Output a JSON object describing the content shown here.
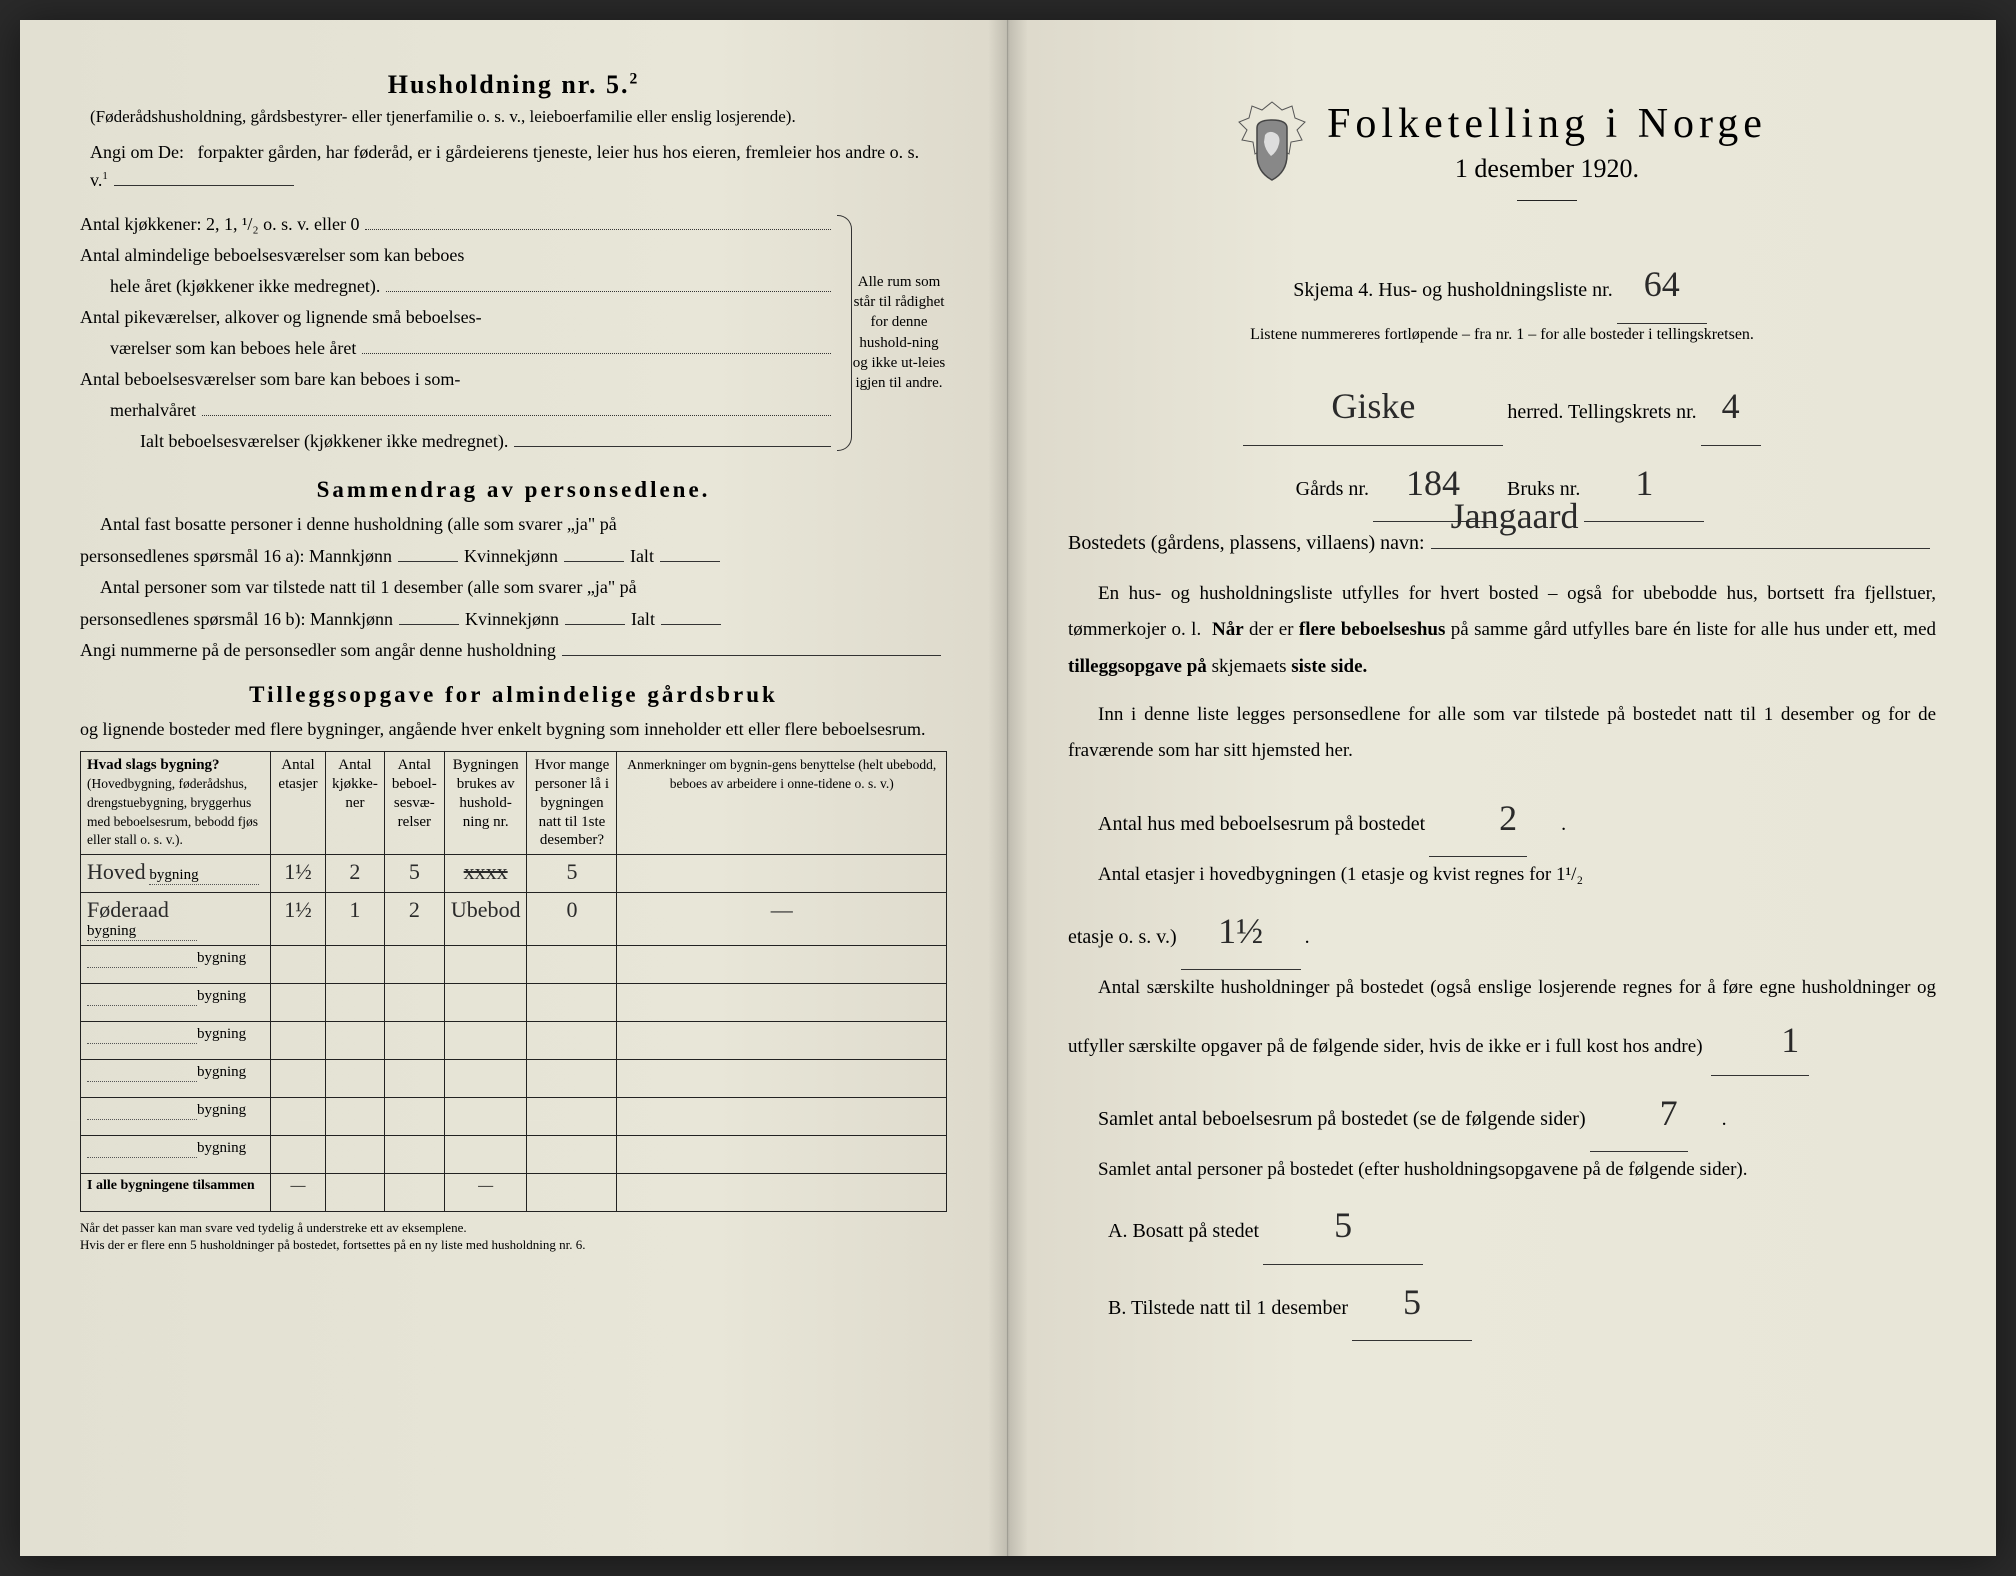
{
  "left": {
    "heading": "Husholdning nr. 5.",
    "heading_sup": "2",
    "sub1": "(Føderådshusholdning, gårdsbestyrer- eller tjenerfamilie o. s. v., leieboerfamilie eller enslig losjerende).",
    "sub2_a": "Angi om De:",
    "sub2_b": "forpakter gården, har føderåd, er i gårdeierens tjeneste, leier hus hos eieren, fremleier hos andre o. s. v.",
    "sub2_sup": "1",
    "k1": "Antal kjøkkener: 2, 1, ¹/₂ o. s. v. eller 0",
    "k2a": "Antal almindelige beboelsesværelser som kan beboes",
    "k2b": "hele året (kjøkkener ikke medregnet).",
    "k3a": "Antal pikeværelser, alkover og lignende små beboelses-",
    "k3b": "værelser som kan beboes hele året",
    "k4a": "Antal beboelsesværelser som bare kan beboes i som-",
    "k4b": "merhalvåret",
    "k5": "Ialt beboelsesværelser (kjøkkener ikke medregnet).",
    "bracket_text": "Alle rum som står til rådighet for denne hushold-ning og ikke ut-leies igjen til andre.",
    "sec2_title": "Sammendrag av personsedlene.",
    "sec2_l1": "Antal fast bosatte personer i denne husholdning (alle som svarer „ja\" på",
    "sec2_l2a": "personsedlenes spørsmål 16 a): Mannkjønn",
    "sec2_l2b": "Kvinnekjønn",
    "sec2_l2c": "Ialt",
    "sec2_l3": "Antal personer som var tilstede natt til 1 desember (alle som svarer „ja\" på",
    "sec2_l4a": "personsedlenes spørsmål 16 b): Mannkjønn",
    "sec2_l5": "Angi nummerne på de personsedler som angår denne husholdning",
    "sec3_title": "Tilleggsopgave for almindelige gårdsbruk",
    "sec3_sub": "og lignende bosteder med flere bygninger, angående hver enkelt bygning som inneholder ett eller flere beboelsesrum.",
    "th1a": "Hvad slags bygning?",
    "th1b": "(Hovedbygning, føderådshus, drengstuebygning, bryggerhus med beboelsesrum, bebodd fjøs eller stall o. s. v.).",
    "th2": "Antal etasjer",
    "th3": "Antal kjøkke-ner",
    "th4": "Antal beboel-sesvæ-relser",
    "th5": "Bygningen brukes av hushold-ning nr.",
    "th6": "Hvor mange personer lå i bygningen natt til 1ste desember?",
    "th7": "Anmerkninger om bygnin-gens benyttelse (helt ubebodd, beboes av arbeidere i onne-tidene o. s. v.)",
    "row_suffix": "bygning",
    "rows": [
      {
        "name": "Hoved",
        "etasjer": "1½",
        "kjokken": "2",
        "rum": "5",
        "brukes": "",
        "brukes_strike": true,
        "personer": "5",
        "anm": ""
      },
      {
        "name": "Føderaad",
        "etasjer": "1½",
        "kjokken": "1",
        "rum": "2",
        "brukes": "Ubebod",
        "personer": "0",
        "anm": "—"
      }
    ],
    "total_label": "I alle bygningene tilsammen",
    "total_dash": "—",
    "fn1": "Når det passer kan man svare ved tydelig å understreke ett av eksemplene.",
    "fn2": "Hvis der er flere enn 5 husholdninger på bostedet, fortsettes på en ny liste med husholdning nr. 6."
  },
  "right": {
    "title": "Folketelling i Norge",
    "date": "1 desember 1920.",
    "skjema": "Skjema 4.  Hus- og husholdningsliste nr.",
    "liste_nr": "64",
    "listene": "Listene nummereres fortløpende – fra nr. 1 – for alle bosteder i tellingskretsen.",
    "herred_val": "Giske",
    "herred_lbl": "herred.  Tellingskrets nr.",
    "krets_nr": "4",
    "gards_lbl": "Gårds nr.",
    "gards_nr": "184",
    "bruks_lbl": "Bruks nr.",
    "bruks_nr": "1",
    "bosted_lbl": "Bostedets (gårdens, plassens, villaens) navn:",
    "bosted_val": "Jangaard",
    "p1": "En hus- og husholdningsliste utfylles for hvert bosted – også for ubebodde hus, bortsett fra fjellstuer, tømmerkojer o. l.  Når der er flere beboelseshus på samme gård utfylles bare én liste for alle hus under ett, med tilleggsopgave på skjemaets siste side.",
    "p2": "Inn i denne liste legges personsedlene for alle som var tilstede på bostedet natt til 1 desember og for de fraværende som har sitt hjemsted her.",
    "q1_a": "Antal hus med beboelsesrum på bostedet",
    "q1_val": "2",
    "q2_a": "Antal etasjer i hovedbygningen (1 etasje og kvist regnes for 1¹/₂",
    "q2_b": "etasje o. s. v.)",
    "q2_val": "1½",
    "q3": "Antal særskilte husholdninger på bostedet (også enslige losjerende regnes for å føre egne husholdninger og utfyller særskilte opgaver på de følgende sider, hvis de ikke er i full kost hos andre)",
    "q3_val": "1",
    "q4": "Samlet antal beboelsesrum på bostedet (se de følgende sider)",
    "q4_val": "7",
    "q5": "Samlet antal personer på bostedet (efter husholdningsopgavene på de følgende sider).",
    "qA": "A.  Bosatt på stedet",
    "qA_val": "5",
    "qB": "B.  Tilstede natt til 1 desember",
    "qB_val": "5"
  },
  "colors": {
    "paper": "#e8e6d8",
    "ink": "#222222",
    "hand": "#2a2a2a"
  }
}
